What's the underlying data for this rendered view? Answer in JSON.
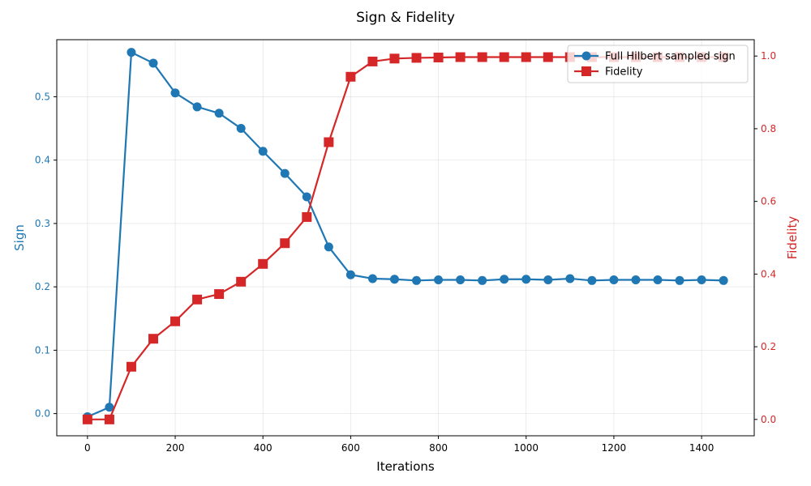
{
  "chart_data": {
    "type": "line",
    "title": "Sign & Fidelity",
    "xlabel": "Iterations",
    "ylabel_left": "Sign",
    "ylabel_right": "Fidelity",
    "xlim": [
      -70,
      1520
    ],
    "ylim_left": [
      -0.035,
      0.59
    ],
    "ylim_right": [
      -0.045,
      1.045
    ],
    "x_ticks": [
      0,
      200,
      400,
      600,
      800,
      1000,
      1200,
      1400
    ],
    "y_ticks_left": [
      0.0,
      0.1,
      0.2,
      0.3,
      0.4,
      0.5
    ],
    "y_ticks_right": [
      0.0,
      0.2,
      0.4,
      0.6,
      0.8,
      1.0
    ],
    "grid": true,
    "legend_position": "top-right",
    "x": [
      0,
      50,
      100,
      150,
      200,
      250,
      300,
      350,
      400,
      450,
      500,
      550,
      600,
      650,
      700,
      750,
      800,
      850,
      900,
      950,
      1000,
      1050,
      1100,
      1150,
      1200,
      1250,
      1300,
      1350,
      1400,
      1450
    ],
    "series": [
      {
        "name": "Full Hilbert sampled sign",
        "axis": "left",
        "color": "#1f77b4",
        "marker": "circle",
        "values": [
          -0.005,
          0.01,
          0.57,
          0.553,
          0.506,
          0.484,
          0.474,
          0.45,
          0.414,
          0.379,
          0.342,
          0.263,
          0.219,
          0.213,
          0.212,
          0.21,
          0.211,
          0.211,
          0.21,
          0.212,
          0.212,
          0.211,
          0.213,
          0.21,
          0.211,
          0.211,
          0.211,
          0.21,
          0.211,
          0.21
        ]
      },
      {
        "name": "Fidelity",
        "axis": "right",
        "color": "#d62728",
        "marker": "square",
        "values": [
          0.0,
          0.0,
          0.145,
          0.222,
          0.27,
          0.33,
          0.345,
          0.379,
          0.428,
          0.485,
          0.557,
          0.763,
          0.943,
          0.985,
          0.993,
          0.995,
          0.996,
          0.997,
          0.997,
          0.997,
          0.997,
          0.997,
          0.997,
          0.997,
          0.997,
          0.997,
          0.997,
          0.997,
          0.997,
          0.997
        ]
      }
    ]
  }
}
